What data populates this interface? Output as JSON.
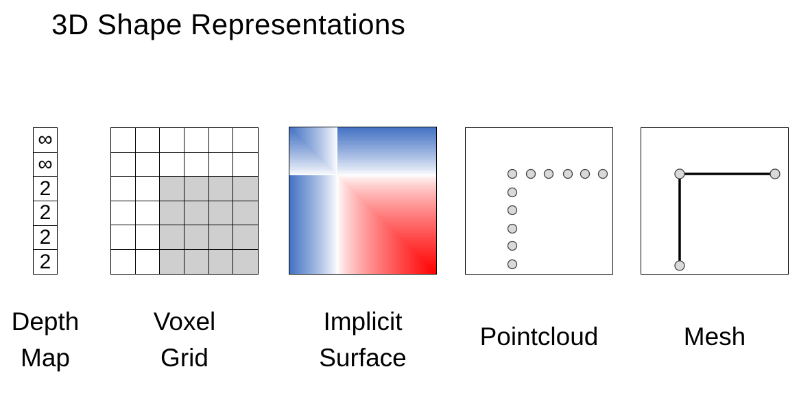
{
  "title": "3D Shape Representations",
  "depth_map": {
    "values": [
      "∞",
      "∞",
      "2",
      "2",
      "2",
      "2"
    ],
    "label_line1": "Depth",
    "label_line2": "Map"
  },
  "voxel_grid": {
    "rows": 6,
    "cols": 6,
    "filled_from_row": 2,
    "filled_from_col": 2,
    "filled_color": "#d0cfd0",
    "label_line1": "Voxel",
    "label_line2": "Grid"
  },
  "implicit_surface": {
    "negative_color": "#4472c4",
    "zero_color": "#ffffff",
    "positive_color": "#ff0000",
    "label_line1": "Implicit",
    "label_line2": "Surface"
  },
  "pointcloud": {
    "point_fill": "#d9d9d9",
    "label": "Pointcloud"
  },
  "mesh": {
    "vertex_fill": "#d9d9d9",
    "label": "Mesh"
  }
}
